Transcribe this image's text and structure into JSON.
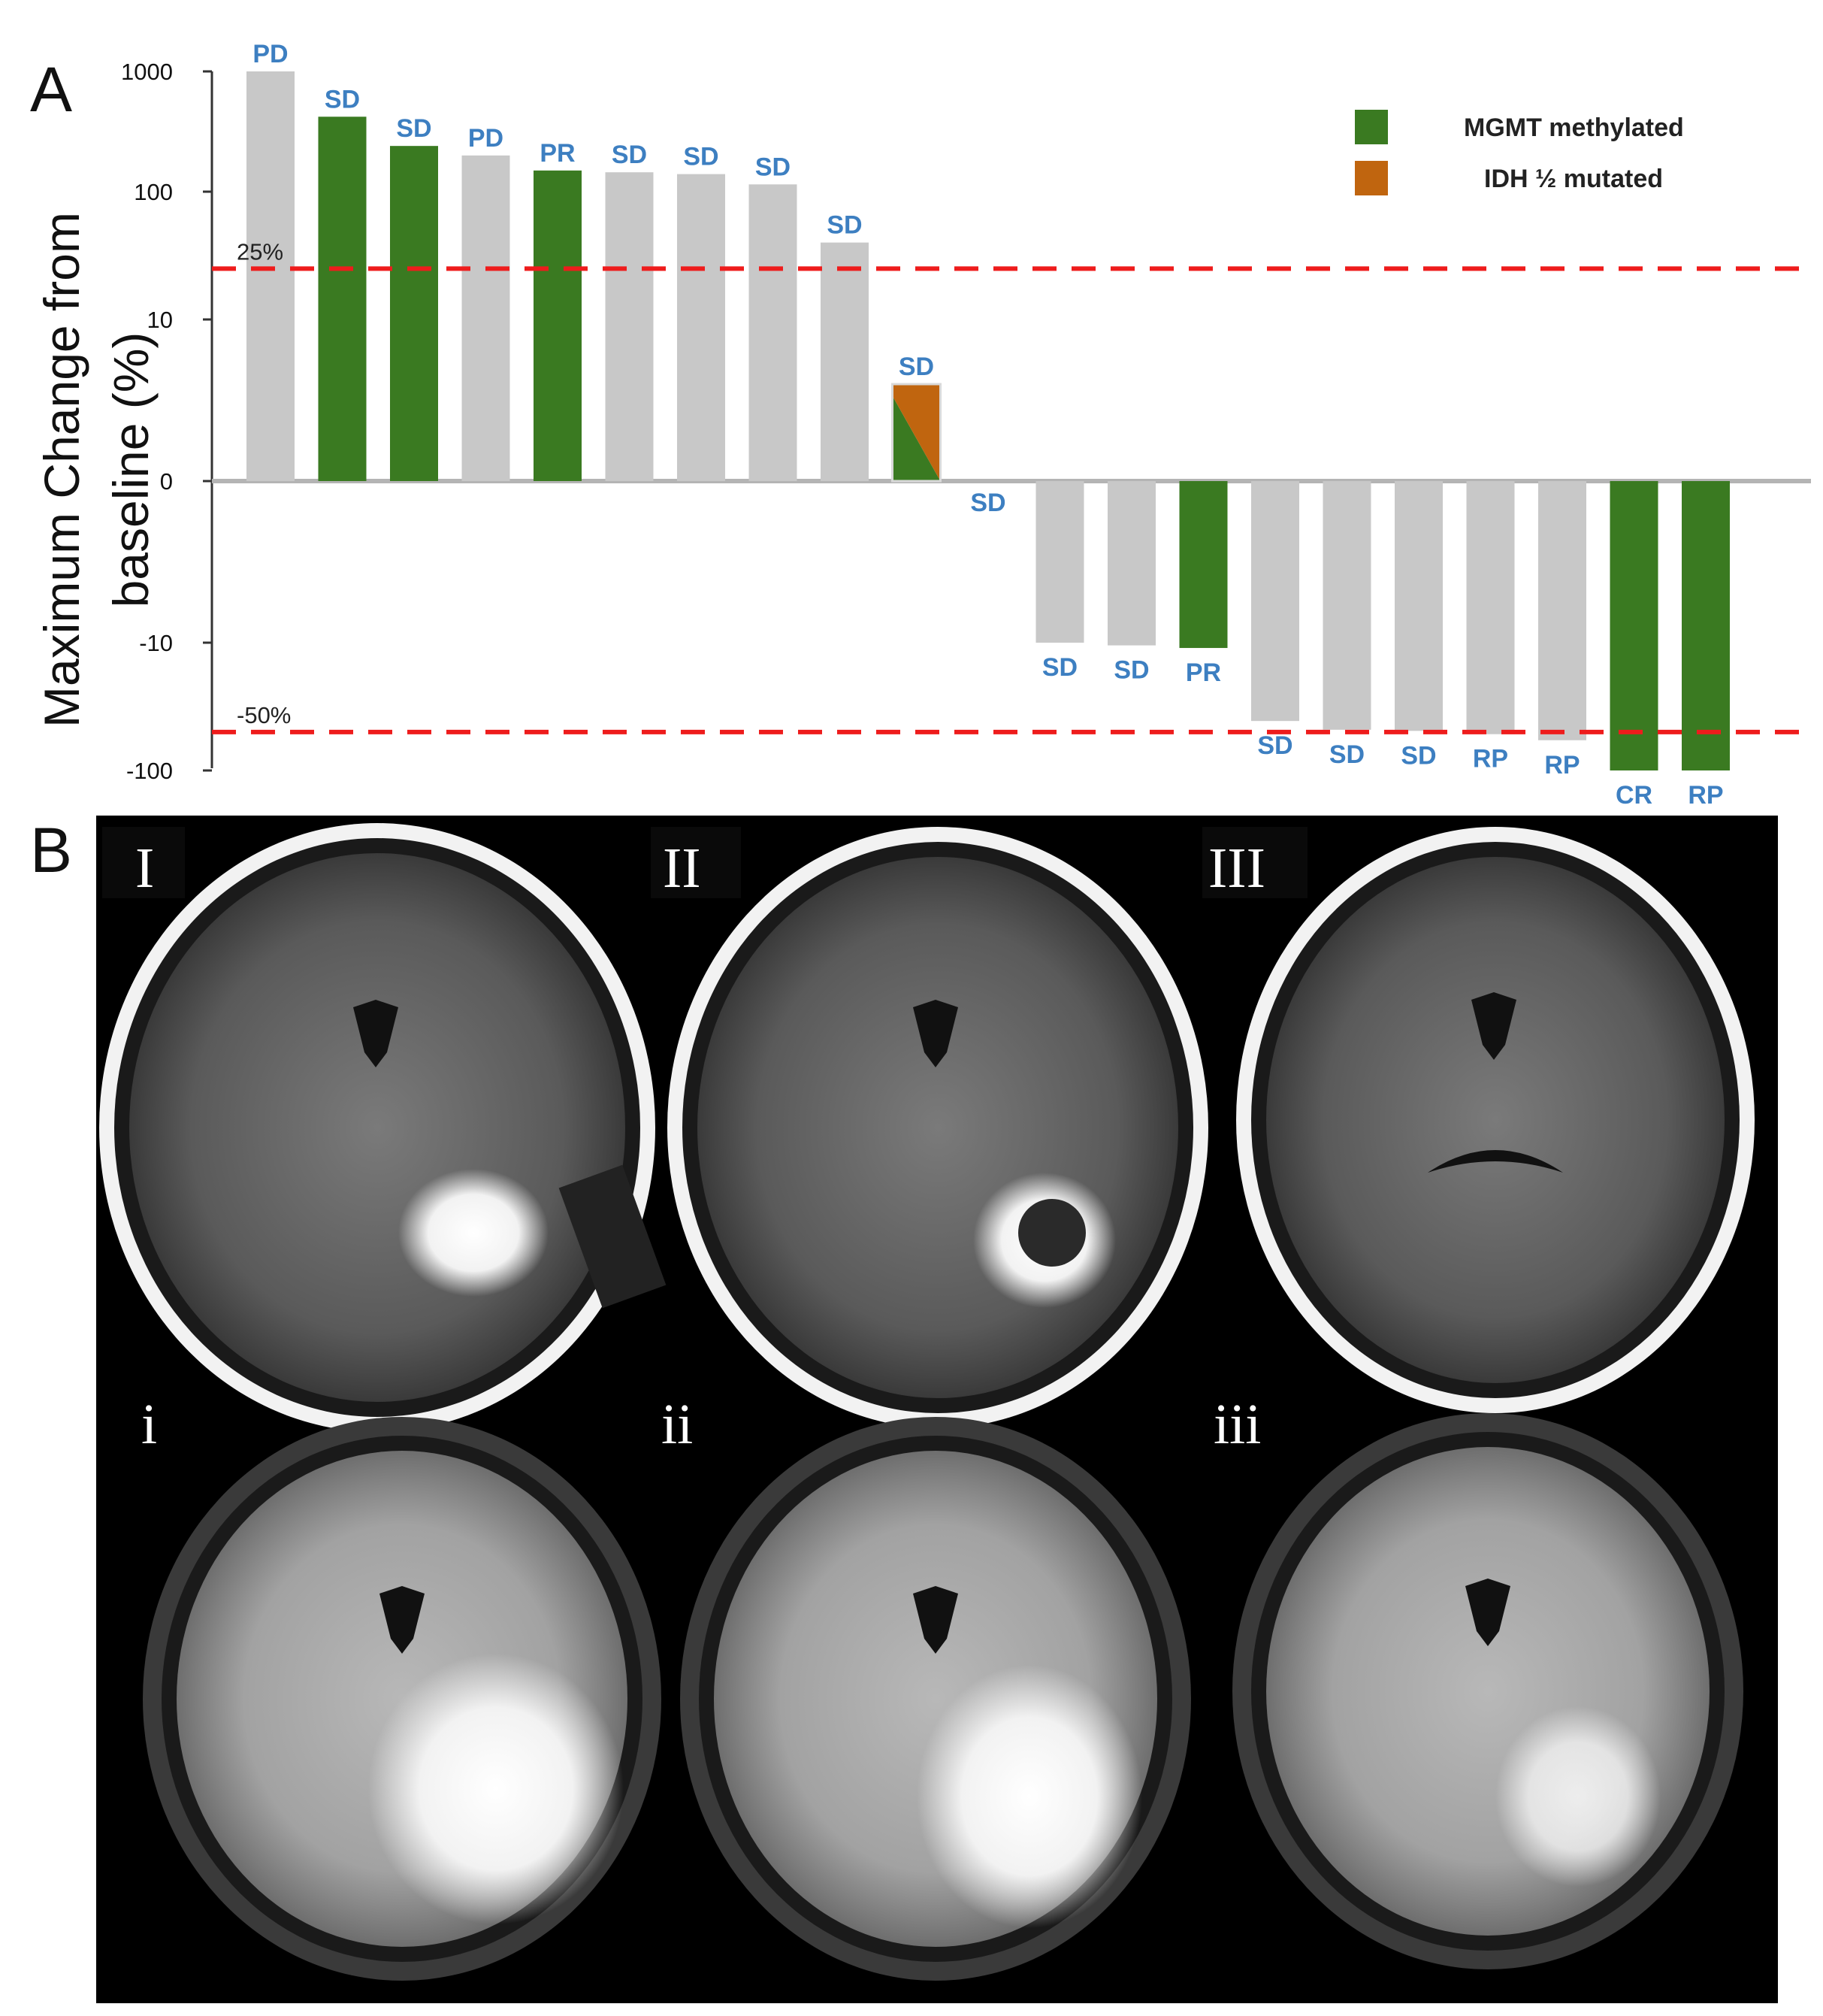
{
  "panels": {
    "a_letter": "A",
    "b_letter": "B"
  },
  "chart_data": {
    "type": "bar",
    "title": "",
    "xlabel": "",
    "ylabel": [
      "Maximum Change from",
      "baseline (%)"
    ],
    "y_scale": "symmetric-log",
    "y_ticks": [
      {
        "value": 1000,
        "label": "1000"
      },
      {
        "value": 100,
        "label": "100"
      },
      {
        "value": 10,
        "label": "10"
      },
      {
        "value": 0,
        "label": "0"
      },
      {
        "value": -10,
        "label": "-10"
      },
      {
        "value": -100,
        "label": "-100"
      }
    ],
    "ylim": [
      -100,
      1000
    ],
    "grid": false,
    "reference_lines": [
      {
        "value": 25,
        "label": "25%",
        "color": "#ee1c1c"
      },
      {
        "value": -50,
        "label": "-50%",
        "color": "#ee1c1c"
      }
    ],
    "legend": {
      "position": "top-right",
      "entries": [
        {
          "name": "MGMT methylated",
          "color": "#3a7a21"
        },
        {
          "name": "IDH ½ mutated",
          "color": "#c0650f"
        }
      ]
    },
    "colors": {
      "none": "#c8c8c8",
      "mgmt": "#3a7a21",
      "idh": "#c0650f",
      "axis": "#b4b4b4",
      "label": "#3d7fc1"
    },
    "bars": [
      {
        "value": 1000,
        "response": "PD",
        "group": "none"
      },
      {
        "value": 420,
        "response": "SD",
        "group": "mgmt"
      },
      {
        "value": 240,
        "response": "SD",
        "group": "mgmt"
      },
      {
        "value": 200,
        "response": "PD",
        "group": "none"
      },
      {
        "value": 150,
        "response": "PR",
        "group": "mgmt"
      },
      {
        "value": 145,
        "response": "SD",
        "group": "none"
      },
      {
        "value": 140,
        "response": "SD",
        "group": "none"
      },
      {
        "value": 115,
        "response": "SD",
        "group": "none"
      },
      {
        "value": 40,
        "response": "SD",
        "group": "none"
      },
      {
        "value": 6,
        "response": "SD",
        "group": "mgmt+idh"
      },
      {
        "value": 0,
        "response": "SD",
        "group": "none"
      },
      {
        "value": -10,
        "response": "SD",
        "group": "none"
      },
      {
        "value": -10.5,
        "response": "SD",
        "group": "none"
      },
      {
        "value": -11,
        "response": "PR",
        "group": "mgmt"
      },
      {
        "value": -41,
        "response": "SD",
        "group": "none"
      },
      {
        "value": -48,
        "response": "SD",
        "group": "none"
      },
      {
        "value": -49,
        "response": "SD",
        "group": "none"
      },
      {
        "value": -52,
        "response": "RP",
        "group": "none"
      },
      {
        "value": -58,
        "response": "RP",
        "group": "none"
      },
      {
        "value": -100,
        "response": "CR",
        "group": "mgmt"
      },
      {
        "value": -100,
        "response": "RP",
        "group": "mgmt"
      }
    ]
  },
  "mri": {
    "row1_labels": [
      "I",
      "II",
      "III"
    ],
    "row2_labels": [
      "i",
      "ii",
      "iii"
    ]
  }
}
